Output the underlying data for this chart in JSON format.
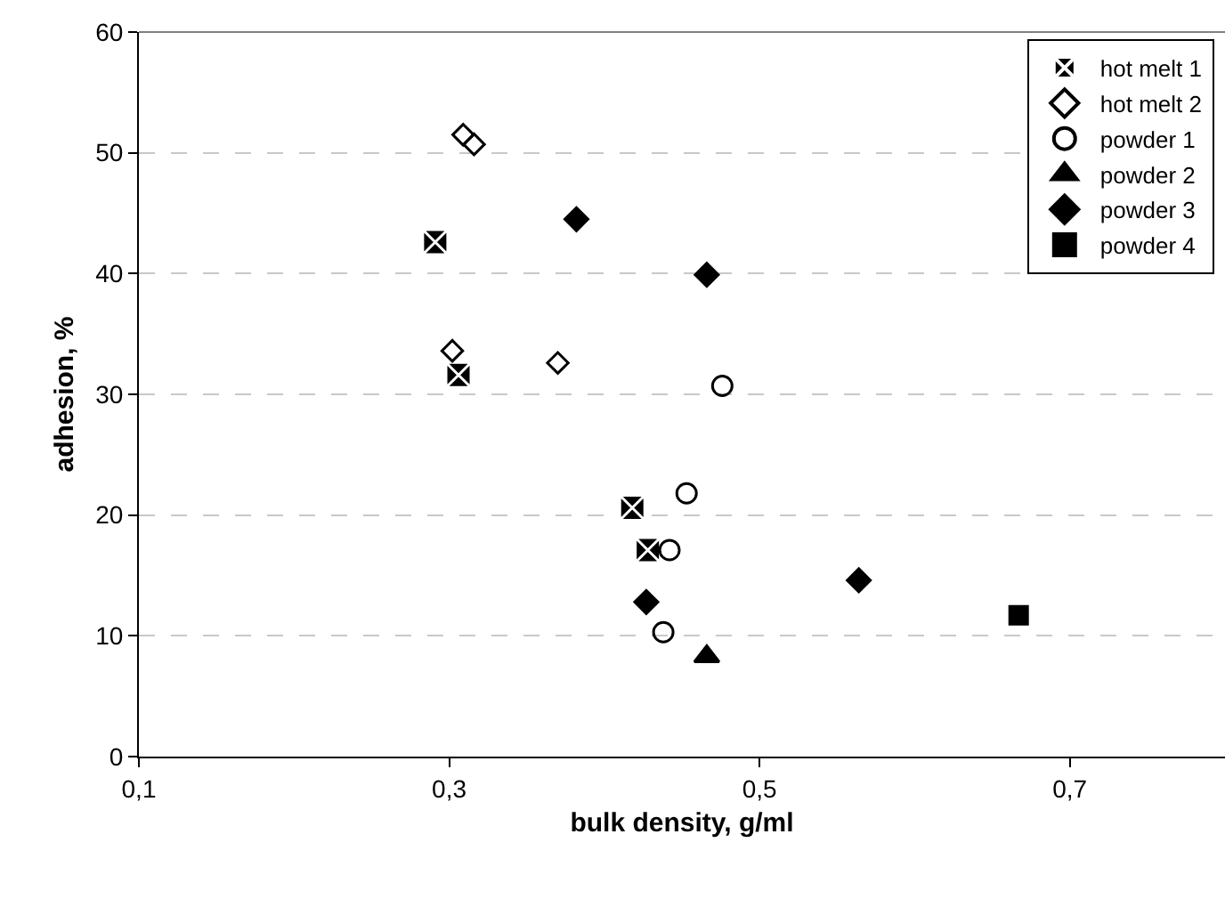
{
  "chart_data": {
    "type": "scatter",
    "xlabel": "bulk density, g/ml",
    "ylabel": "adhesion, %",
    "xlim": [
      0.1,
      0.8
    ],
    "xticks": [
      {
        "value": 0.1,
        "label": "0,1"
      },
      {
        "value": 0.3,
        "label": "0,3"
      },
      {
        "value": 0.5,
        "label": "0,5"
      },
      {
        "value": 0.7,
        "label": "0,7"
      }
    ],
    "ylim": [
      0,
      60
    ],
    "yticks": [
      0,
      10,
      20,
      30,
      40,
      50,
      60
    ],
    "grid": "y",
    "legend": "top right",
    "series": [
      {
        "name": "hot melt 1",
        "color": "#000000",
        "marker": "cross",
        "x": [
          0.291,
          0.306,
          0.418,
          0.428
        ],
        "values": [
          42.6,
          31.6,
          20.6,
          17.1
        ]
      },
      {
        "name": "hot melt 2",
        "color": "#000000",
        "marker": "diamond-open",
        "x": [
          0.309,
          0.316,
          0.302,
          0.37
        ],
        "values": [
          51.5,
          50.7,
          33.6,
          32.6
        ]
      },
      {
        "name": "powder 1",
        "color": "#000000",
        "marker": "circle-open",
        "x": [
          0.476,
          0.453,
          0.442,
          0.438
        ],
        "values": [
          30.7,
          21.8,
          17.1,
          10.3
        ]
      },
      {
        "name": "powder 2",
        "color": "#000000",
        "marker": "triangle",
        "x": [
          0.466
        ],
        "values": [
          8.3
        ]
      },
      {
        "name": "powder 3",
        "color": "#000000",
        "marker": "diamond",
        "x": [
          0.382,
          0.466,
          0.427,
          0.564
        ],
        "values": [
          44.5,
          39.9,
          12.8,
          14.6
        ]
      },
      {
        "name": "powder 4",
        "color": "#000000",
        "marker": "square",
        "x": [
          0.667
        ],
        "values": [
          11.7
        ]
      }
    ]
  }
}
